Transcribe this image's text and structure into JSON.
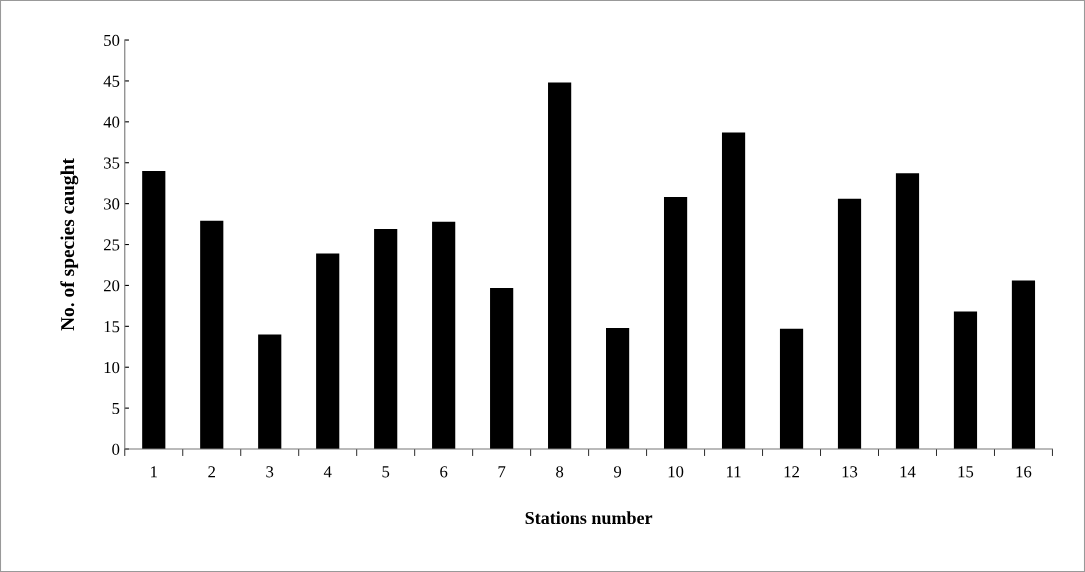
{
  "chart_data": {
    "type": "bar",
    "xlabel": "Stations number",
    "ylabel": "No. of species caught",
    "categories": [
      "1",
      "2",
      "3",
      "4",
      "5",
      "6",
      "7",
      "8",
      "9",
      "10",
      "11",
      "12",
      "13",
      "14",
      "15",
      "16"
    ],
    "values": [
      34,
      27.9,
      14,
      23.9,
      26.9,
      27.8,
      19.7,
      44.8,
      14.8,
      30.8,
      38.7,
      14.7,
      30.6,
      33.7,
      16.8,
      20.6
    ],
    "color": "#000000",
    "ylim": [
      0,
      50
    ],
    "yticks": [
      0,
      5,
      10,
      15,
      20,
      25,
      30,
      35,
      40,
      45,
      50
    ],
    "grid": false,
    "legend": false
  }
}
